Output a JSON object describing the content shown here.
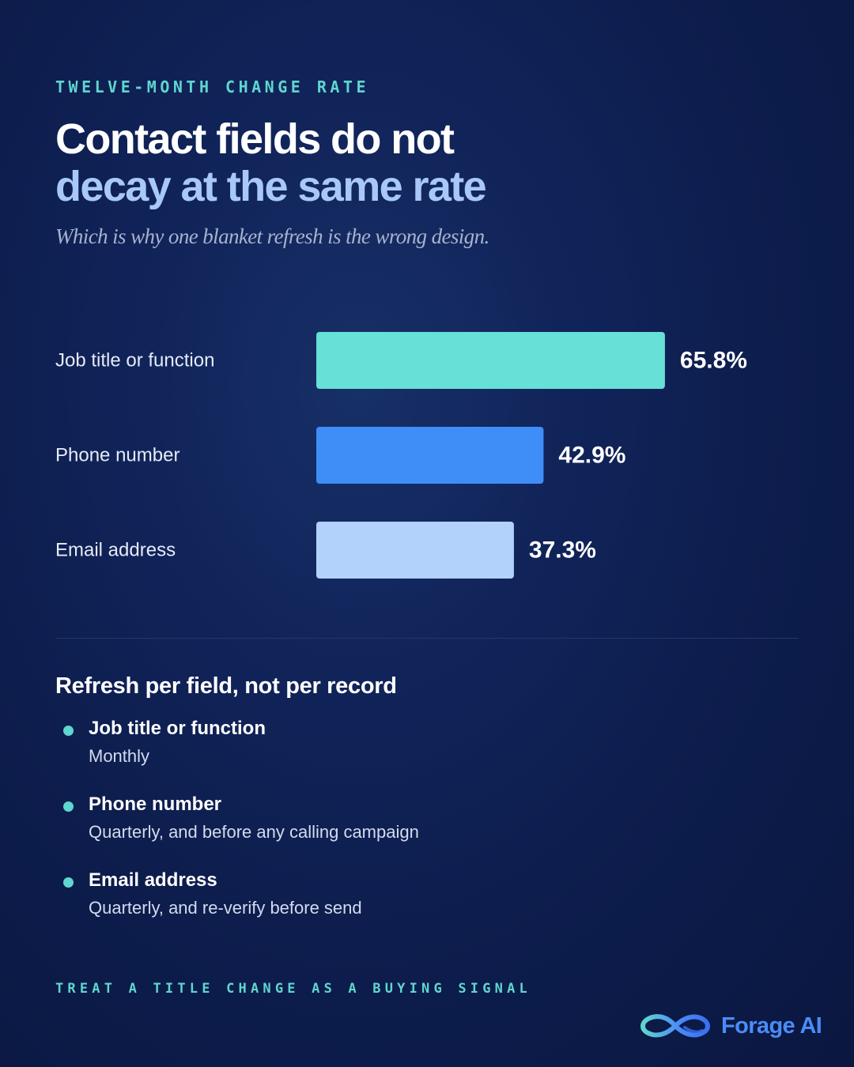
{
  "eyebrow": "TWELVE-MONTH CHANGE RATE",
  "headline": {
    "line1": "Contact fields do not",
    "line2": "decay at the same rate"
  },
  "subtitle": "Which is why one blanket refresh is the wrong design.",
  "chart_data": {
    "type": "bar",
    "orientation": "horizontal",
    "categories": [
      "Job title or function",
      "Phone number",
      "Email address"
    ],
    "values": [
      65.8,
      42.9,
      37.3
    ],
    "value_labels": [
      "65.8%",
      "42.9%",
      "37.3%"
    ],
    "unit": "%",
    "colors": [
      "#67e0d7",
      "#3f8ef7",
      "#b3d2fb"
    ],
    "xlim": [
      0,
      100
    ],
    "grid": false
  },
  "recommendations": {
    "title": "Refresh per field, not per record",
    "items": [
      {
        "field": "Job title or function",
        "frequency": "Monthly"
      },
      {
        "field": "Phone number",
        "frequency": "Quarterly, and before any calling campaign"
      },
      {
        "field": "Email address",
        "frequency": "Quarterly, and re-verify before send"
      }
    ]
  },
  "footer": {
    "tagline": "TREAT A TITLE CHANGE AS A BUYING SIGNAL"
  },
  "brand": {
    "name": "Forage AI",
    "logo_icon": "infinity-logo-icon"
  },
  "colors": {
    "background": "#0f2052",
    "accent_teal": "#5fd6cf",
    "accent_blue": "#4a8cf7",
    "headline_highlight": "#a9c8fa"
  }
}
